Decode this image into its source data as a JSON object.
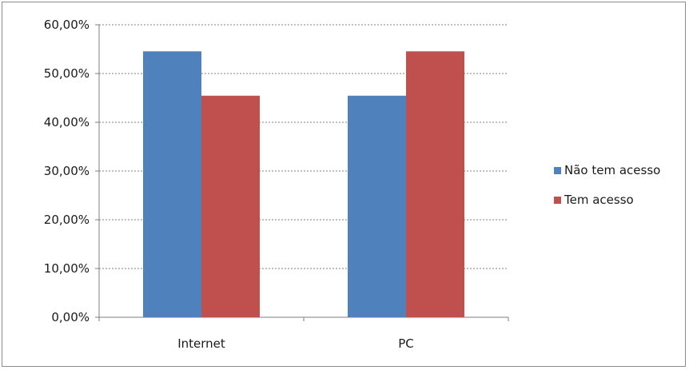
{
  "chart_data": {
    "type": "bar",
    "categories": [
      "Internet",
      "PC"
    ],
    "series": [
      {
        "name": "Não tem acesso",
        "values": [
          54.55,
          45.45
        ],
        "color": "#4f81bd"
      },
      {
        "name": "Tem acesso",
        "values": [
          45.45,
          54.55
        ],
        "color": "#c0504d"
      }
    ],
    "ylim": [
      0,
      60
    ],
    "yticks": [
      0,
      10,
      20,
      30,
      40,
      50,
      60
    ],
    "ytick_labels": [
      "0,00%",
      "10,00%",
      "20,00%",
      "30,00%",
      "40,00%",
      "50,00%",
      "60,00%"
    ],
    "grid": true,
    "legend_position": "right",
    "title": "",
    "xlabel": "",
    "ylabel": ""
  }
}
